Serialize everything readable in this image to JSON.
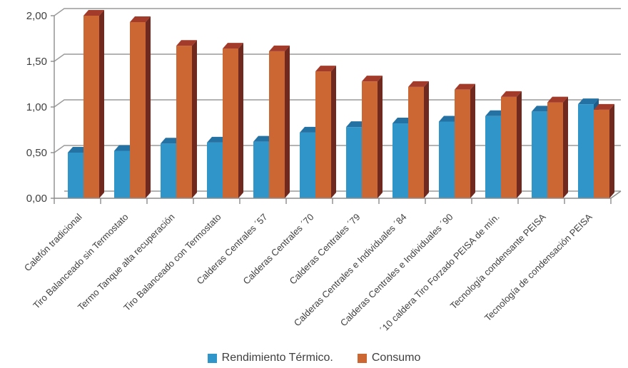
{
  "chart_data": {
    "type": "bar",
    "style": "3d-clustered-column",
    "title": "",
    "xlabel": "",
    "ylabel": "",
    "categories": [
      "Calefón tradicional",
      "Tiro Balanceado sin Termostato",
      "Termo Tanque alta recuperación",
      "Tiro Balanceado con Termostato",
      "Calderas Centrales ´57",
      "Calderas Centrales ´70",
      "Calderas Centrales ´79",
      "Calderas Centrales e Individuales ´84",
      "Calderas Centrales e Individuales ´90",
      "´10 caldera Tiro Forzado PEISA de mín.",
      "Tecnología condensante PEISA",
      "Tecnología de condensación PEISA"
    ],
    "series": [
      {
        "name": "Rendimiento Térmico.",
        "color": "#3095C9",
        "color_top": "#2471A3",
        "color_side": "#1B5E8C",
        "values": [
          0.5,
          0.52,
          0.6,
          0.61,
          0.62,
          0.72,
          0.78,
          0.82,
          0.84,
          0.9,
          0.95,
          1.03
        ]
      },
      {
        "name": "Consumo",
        "color": "#CC6733",
        "color_top": "#A33B2B",
        "color_side": "#70291F",
        "values": [
          2.0,
          1.93,
          1.67,
          1.64,
          1.61,
          1.39,
          1.28,
          1.22,
          1.19,
          1.11,
          1.05,
          0.97
        ]
      }
    ],
    "y_axis": {
      "min": 0,
      "max": 2,
      "step": 0.5,
      "tick_labels": [
        "0,00",
        "0,50",
        "1,00",
        "1,50",
        "2,00"
      ],
      "decimal_separator": ","
    },
    "x_axis": {
      "label_rotation_deg": 45
    },
    "grid": true,
    "legend_position": "bottom",
    "colors": {
      "background": "#FFFFFF",
      "gridline": "#9A9A9A",
      "axis": "#8C8C8C",
      "text": "#404040"
    }
  }
}
